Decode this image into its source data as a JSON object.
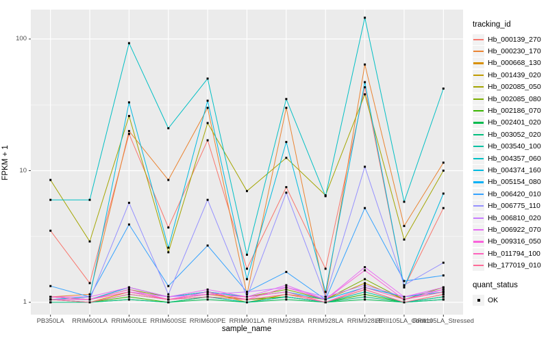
{
  "figure": {
    "x_axis_title": "sample_name",
    "y_axis_title": "FPKM + 1",
    "legend": {
      "color_title": "tracking_id",
      "shape_title": "quant_status",
      "shape_items": [
        {
          "label": "OK",
          "shape": "square",
          "color": "#000000"
        }
      ]
    },
    "panel_background": "#EBEBEB",
    "gridline_color": "#FFFFFF",
    "tick_label_color": "#4d4d4d"
  },
  "chart_data": {
    "type": "line",
    "title": "",
    "xlabel": "sample_name",
    "ylabel": "FPKM + 1",
    "x_type": "categorical",
    "y_scale": "log10",
    "ylim": [
      0.81,
      167
    ],
    "y_ticks": [
      1,
      10,
      100
    ],
    "y_minor_gridlines": [
      3.162,
      31.62
    ],
    "grid": "on",
    "legend_position": "right",
    "point_marker": {
      "shape": "square",
      "color": "#000000",
      "legend": "OK"
    },
    "categories": [
      "PB350LA",
      "RRIM600LA",
      "RRIM600LE",
      "RRIM600SE",
      "RRIM600PE",
      "RRIM901LA",
      "RRIM928BA",
      "RRIM928LA",
      "RRIM928LE",
      "RRII105LA_Control",
      "RRII105LA_Stressed"
    ],
    "series": [
      {
        "name": "Hb_000139_270",
        "color": "#F8766D",
        "values": [
          3.5,
          1.4,
          19,
          3.7,
          17,
          1.8,
          7.5,
          1.8,
          43,
          1.3,
          5.2
        ]
      },
      {
        "name": "Hb_000230_170",
        "color": "#EA8331",
        "values": [
          1.1,
          1.15,
          20,
          8.5,
          30,
          1.15,
          30,
          1.1,
          64,
          3.8,
          11.5
        ]
      },
      {
        "name": "Hb_000668_130",
        "color": "#D89000",
        "values": [
          1.05,
          1.0,
          1.2,
          1.05,
          1.15,
          1.05,
          1.1,
          1.0,
          1.25,
          1.0,
          1.15
        ]
      },
      {
        "name": "Hb_001439_020",
        "color": "#C09B00",
        "values": [
          1.1,
          1.05,
          1.3,
          1.1,
          1.2,
          1.0,
          1.15,
          1.05,
          1.4,
          1.05,
          1.2
        ]
      },
      {
        "name": "Hb_002085_050",
        "color": "#A3A500",
        "values": [
          8.5,
          2.9,
          26,
          2.4,
          23,
          7.0,
          12.5,
          6.5,
          38,
          3.0,
          10
        ]
      },
      {
        "name": "Hb_002085_080",
        "color": "#7CAE00",
        "values": [
          1.05,
          1.05,
          1.25,
          1.1,
          1.2,
          1.1,
          1.25,
          1.05,
          1.5,
          1.05,
          1.3
        ]
      },
      {
        "name": "Hb_002186_070",
        "color": "#39B600",
        "values": [
          1.0,
          1.0,
          1.1,
          1.0,
          1.1,
          1.05,
          1.1,
          1.0,
          1.15,
          1.0,
          1.1
        ]
      },
      {
        "name": "Hb_002401_020",
        "color": "#00BB4E",
        "values": [
          1.0,
          1.0,
          1.05,
          1.0,
          1.05,
          1.0,
          1.05,
          1.0,
          1.05,
          1.0,
          1.05
        ]
      },
      {
        "name": "Hb_003052_020",
        "color": "#00BF7D",
        "values": [
          1.0,
          1.0,
          1.05,
          1.0,
          1.1,
          1.0,
          1.1,
          1.0,
          1.1,
          1.0,
          1.05
        ]
      },
      {
        "name": "Hb_003540_100",
        "color": "#00C1A3",
        "values": [
          1.05,
          1.0,
          1.15,
          1.05,
          1.1,
          1.0,
          1.1,
          1.0,
          1.2,
          1.0,
          1.1
        ]
      },
      {
        "name": "Hb_004357_060",
        "color": "#00BFC4",
        "values": [
          6.0,
          6.0,
          93,
          21,
          50,
          2.3,
          35,
          6.4,
          145,
          5.8,
          42
        ]
      },
      {
        "name": "Hb_004374_160",
        "color": "#00BAE0",
        "values": [
          1.05,
          1.1,
          33,
          2.6,
          34,
          1.5,
          16.5,
          1.2,
          47,
          1.3,
          6.7
        ]
      },
      {
        "name": "Hb_005154_080",
        "color": "#00B0F6",
        "values": [
          1.1,
          1.05,
          1.3,
          1.1,
          1.2,
          1.1,
          1.2,
          1.05,
          1.3,
          1.1,
          1.2
        ]
      },
      {
        "name": "Hb_006420_010",
        "color": "#35A2FF",
        "values": [
          1.33,
          1.1,
          3.9,
          1.33,
          2.7,
          1.2,
          1.7,
          1.05,
          5.2,
          1.45,
          1.6
        ]
      },
      {
        "name": "Hb_006775_110",
        "color": "#9590FF",
        "values": [
          1.05,
          1.05,
          5.7,
          1.15,
          6.0,
          1.1,
          6.8,
          1.1,
          10.7,
          1.35,
          2.0
        ]
      },
      {
        "name": "Hb_006810_020",
        "color": "#C77CFF",
        "values": [
          1.1,
          1.05,
          1.2,
          1.1,
          1.15,
          1.2,
          1.3,
          1.1,
          1.35,
          1.1,
          1.25
        ]
      },
      {
        "name": "Hb_006922_070",
        "color": "#E76BF3",
        "values": [
          1.1,
          1.1,
          1.3,
          1.1,
          1.25,
          1.1,
          1.35,
          1.05,
          1.85,
          1.1,
          1.3
        ]
      },
      {
        "name": "Hb_009316_050",
        "color": "#FA62DB",
        "values": [
          1.05,
          1.05,
          1.25,
          1.05,
          1.2,
          1.05,
          1.3,
          1.05,
          1.75,
          1.05,
          1.25
        ]
      },
      {
        "name": "Hb_011794_100",
        "color": "#FF62BC",
        "values": [
          1.1,
          1.05,
          1.2,
          1.05,
          1.15,
          1.1,
          1.2,
          1.0,
          1.3,
          1.05,
          1.2
        ]
      },
      {
        "name": "Hb_177019_010",
        "color": "#FF6A98",
        "values": [
          1.05,
          1.0,
          1.15,
          1.05,
          1.1,
          1.05,
          1.15,
          1.0,
          1.25,
          1.0,
          1.15
        ]
      }
    ]
  }
}
